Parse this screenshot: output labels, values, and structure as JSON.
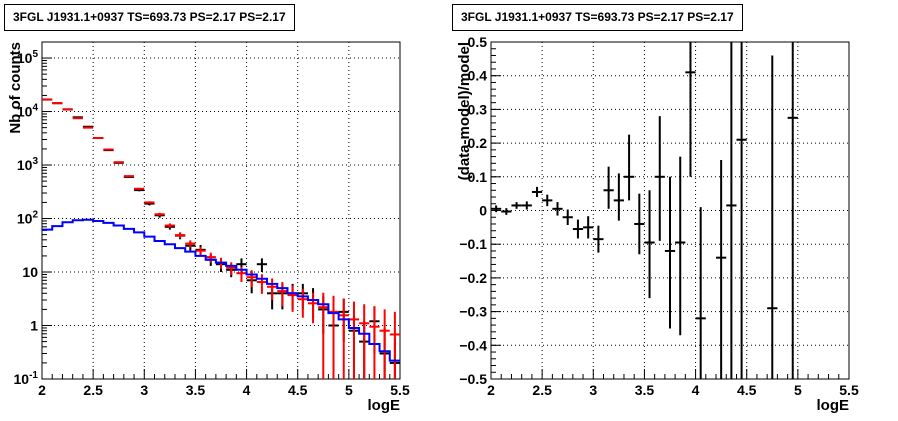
{
  "panels": [
    {
      "title": "3FGL J1931.1+0937 TS=693.73 PS=2.17 PS=2.17"
    },
    {
      "title": "3FGL J1931.1+0937 TS=693.73 PS=2.17 PS=2.17"
    }
  ],
  "chart_data": [
    {
      "type": "line",
      "title": "3FGL J1931.1+0937 TS=693.73 PS=2.17 PS=2.17",
      "xlabel": "logE",
      "ylabel": "Nb of counts",
      "xlim": [
        2,
        5.5
      ],
      "ylim": [
        0.1,
        200000
      ],
      "yscale": "log",
      "grid": true,
      "x_ticks": [
        "2",
        "2.5",
        "3",
        "3.5",
        "4",
        "4.5",
        "5",
        "5.5"
      ],
      "y_ticks": [
        "10^{-1}",
        "1",
        "10",
        "10^{2}",
        "10^{3}",
        "10^{4}",
        "10^{5}"
      ],
      "series": [
        {
          "style": "points-with-errors",
          "color": "#000000",
          "x": [
            2.05,
            2.15,
            2.25,
            2.35,
            2.45,
            2.55,
            2.65,
            2.75,
            2.85,
            2.95,
            3.05,
            3.15,
            3.25,
            3.35,
            3.45,
            3.55,
            3.65,
            3.75,
            3.85,
            3.95,
            4.05,
            4.15,
            4.25,
            4.35,
            4.45,
            4.55,
            4.65,
            4.75,
            4.85,
            4.95,
            5.05,
            5.15,
            5.25,
            5.35,
            5.45
          ],
          "y": [
            16800,
            14300,
            11000,
            7800,
            5200,
            3200,
            1900,
            1100,
            600,
            340,
            190,
            115,
            70,
            48,
            31,
            26,
            17,
            14,
            11,
            14,
            7,
            14,
            4,
            4,
            4,
            4,
            3,
            2,
            1,
            1.8,
            0.8,
            0.5,
            1.2,
            0.3,
            0.2
          ],
          "y_low": [
            16670,
            14180,
            10900,
            7710,
            5130,
            3140,
            1860,
            1070,
            580,
            322,
            176,
            104,
            62,
            41,
            25,
            20,
            13,
            10,
            8,
            10,
            4,
            10,
            2,
            2,
            2,
            2,
            1.3,
            0.7,
            0.2,
            0.5,
            0.1,
            0.1,
            0.3,
            0.1,
            0.1
          ],
          "y_high": [
            16930,
            14420,
            11100,
            7890,
            5270,
            3260,
            1940,
            1130,
            620,
            358,
            204,
            126,
            78,
            55,
            37,
            32,
            21,
            18,
            14,
            18,
            10,
            18,
            6,
            6,
            6,
            6,
            5,
            3.5,
            2.3,
            3.2,
            1.6,
            1.2,
            2.2,
            0.9,
            0.6
          ]
        },
        {
          "style": "model-with-errors",
          "color": "#ff0000",
          "x": [
            2.05,
            2.15,
            2.25,
            2.35,
            2.45,
            2.55,
            2.65,
            2.75,
            2.85,
            2.95,
            3.05,
            3.15,
            3.25,
            3.35,
            3.45,
            3.55,
            3.65,
            3.75,
            3.85,
            3.95,
            4.05,
            4.15,
            4.25,
            4.35,
            4.45,
            4.55,
            4.65,
            4.75,
            4.85,
            4.95,
            5.05,
            5.15,
            5.25,
            5.35,
            5.45
          ],
          "y": [
            16700,
            14400,
            10900,
            7500,
            5000,
            3200,
            1950,
            1130,
            620,
            360,
            200,
            120,
            74,
            49,
            34,
            25,
            19,
            15,
            12,
            9.5,
            8,
            6.5,
            5.3,
            4.4,
            3.7,
            3.1,
            2.6,
            2.2,
            1.8,
            1.55,
            1.3,
            1.1,
            0.95,
            0.8,
            0.68
          ],
          "y_low": [
            16600,
            14300,
            10800,
            7420,
            4940,
            3150,
            1910,
            1100,
            600,
            345,
            190,
            112,
            67,
            43,
            29,
            20.5,
            15,
            11.5,
            8.8,
            6.5,
            5.2,
            3.9,
            3,
            2.3,
            1.8,
            1.4,
            1.1,
            0.1,
            0.1,
            0.1,
            0.1,
            0.1,
            0.1,
            0.1,
            0.1
          ],
          "y_high": [
            16800,
            14500,
            11000,
            7580,
            5060,
            3250,
            1990,
            1160,
            640,
            375,
            210,
            128,
            81,
            55,
            39,
            29.5,
            23,
            18.5,
            15.2,
            12.5,
            10.8,
            9.1,
            7.6,
            6.5,
            5.6,
            4.8,
            4.1,
            4.1,
            3.6,
            3.2,
            2.8,
            2.5,
            2.3,
            2,
            1.8
          ]
        },
        {
          "style": "step",
          "color": "#0000ff",
          "x": [
            2.05,
            2.15,
            2.25,
            2.35,
            2.45,
            2.55,
            2.65,
            2.75,
            2.85,
            2.95,
            3.05,
            3.15,
            3.25,
            3.35,
            3.45,
            3.55,
            3.65,
            3.75,
            3.85,
            3.95,
            4.05,
            4.15,
            4.25,
            4.35,
            4.45,
            4.55,
            4.65,
            4.75,
            4.85,
            4.95,
            5.05,
            5.15,
            5.25,
            5.35,
            5.45
          ],
          "y": [
            62,
            72,
            85,
            93,
            95,
            90,
            83,
            74,
            64,
            55,
            46,
            38,
            33,
            28,
            24,
            20,
            17,
            15,
            13,
            11,
            9,
            7.5,
            6,
            5,
            4,
            3.5,
            3,
            2.5,
            1.7,
            1.3,
            0.9,
            0.7,
            0.45,
            0.33,
            0.22
          ]
        }
      ]
    },
    {
      "type": "scatter",
      "title": "3FGL J1931.1+0937 TS=693.73 PS=2.17 PS=2.17",
      "xlabel": "logE",
      "ylabel": "(data-model)/model",
      "xlim": [
        2,
        5.5
      ],
      "ylim": [
        -0.5,
        0.5
      ],
      "grid": true,
      "x_ticks": [
        "2",
        "2.5",
        "3",
        "3.5",
        "4",
        "4.5",
        "5",
        "5.5"
      ],
      "y_ticks": [
        "−0.5",
        "−0.4",
        "−0.3",
        "−0.2",
        "−0.1",
        "0",
        "0.1",
        "0.2",
        "0.3",
        "0.4",
        "0.5"
      ],
      "series": [
        {
          "style": "points-with-errors",
          "color": "#000000",
          "x": [
            2.05,
            2.15,
            2.25,
            2.35,
            2.45,
            2.55,
            2.65,
            2.75,
            2.85,
            2.95,
            3.05,
            3.15,
            3.25,
            3.35,
            3.45,
            3.55,
            3.65,
            3.75,
            3.85,
            3.95,
            4.05,
            4.25,
            4.35,
            4.45,
            4.75,
            4.95
          ],
          "y": [
            0.005,
            -0.003,
            0.015,
            0.015,
            0.055,
            0.03,
            0.005,
            -0.02,
            -0.055,
            -0.05,
            -0.085,
            0.06,
            0.03,
            0.1,
            -0.04,
            -0.095,
            0.1,
            -0.12,
            -0.095,
            0.41,
            -0.32,
            -0.14,
            0.015,
            0.21,
            -0.29,
            0.275
          ],
          "y_low": [
            -0.005,
            -0.013,
            0.005,
            0.003,
            0.04,
            0.013,
            -0.015,
            -0.043,
            -0.083,
            -0.083,
            -0.125,
            0.005,
            -0.03,
            0.03,
            -0.13,
            -0.26,
            -0.09,
            -0.35,
            -0.37,
            0.1,
            -0.5,
            -0.5,
            -0.5,
            -0.5,
            -0.5,
            -0.5
          ],
          "y_high": [
            0.015,
            0.007,
            0.025,
            0.027,
            0.07,
            0.047,
            0.025,
            0.003,
            -0.027,
            -0.017,
            -0.045,
            0.13,
            0.11,
            0.225,
            0.05,
            0.06,
            0.28,
            0.1,
            0.16,
            0.5,
            0.01,
            0.15,
            0.5,
            0.5,
            0.46,
            0.5
          ]
        }
      ]
    }
  ]
}
